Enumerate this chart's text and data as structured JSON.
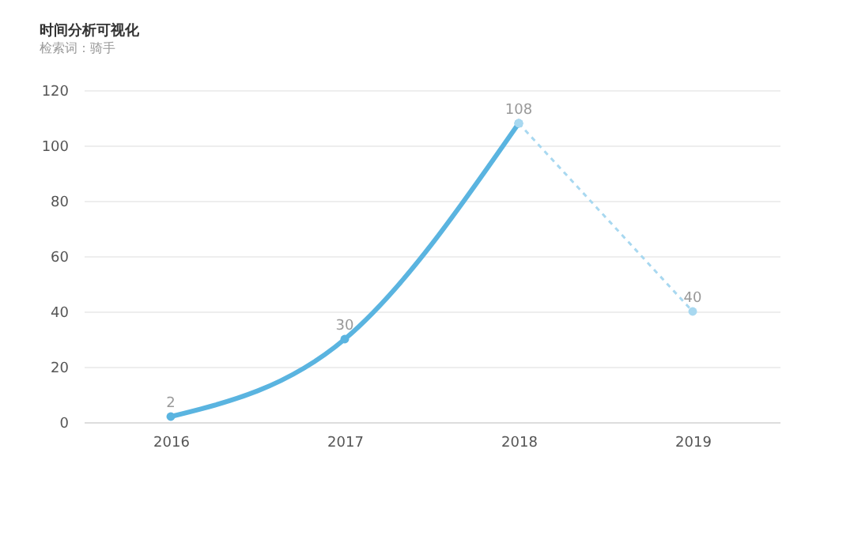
{
  "chart_data": {
    "type": "line",
    "title": "时间分析可视化",
    "subtitle": "检索词：骑手",
    "categories": [
      "2016",
      "2017",
      "2018",
      "2019"
    ],
    "series": [
      {
        "color": "#5ab4e0",
        "values": [
          2,
          30,
          108,
          null
        ],
        "line_style": "solid",
        "value_labels": [
          "2",
          "30",
          "108",
          null
        ]
      },
      {
        "color": "#a8d8f0",
        "values": [
          null,
          null,
          108,
          40
        ],
        "line_style": "dashed",
        "value_labels": [
          null,
          null,
          null,
          "40"
        ]
      }
    ],
    "ylim": [
      0,
      120
    ],
    "yticks": [
      0,
      20,
      40,
      60,
      80,
      100,
      120
    ],
    "grid": "y",
    "marker": "circle"
  }
}
